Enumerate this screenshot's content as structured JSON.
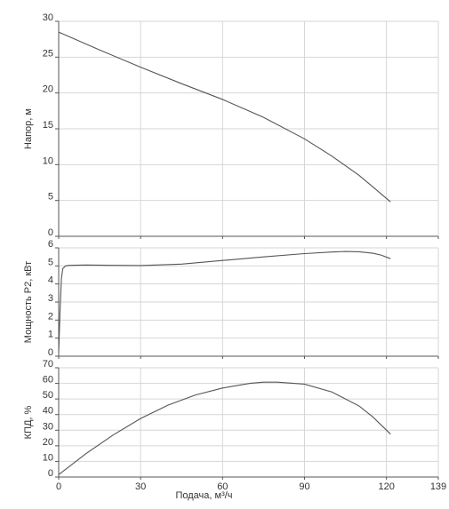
{
  "colors": {
    "curve": "#555555",
    "grid": "#d6d6d6",
    "axis": "#555555"
  },
  "chart_data": [
    {
      "type": "line",
      "ylabel": "Напор, м",
      "xlim": [
        0,
        139
      ],
      "ylim": [
        0,
        30
      ],
      "yticks": [
        0,
        5,
        10,
        15,
        20,
        25,
        30
      ],
      "grid": true,
      "series": [
        {
          "x": [
            0,
            15,
            30,
            45,
            60,
            75,
            90,
            100,
            110,
            115,
            121.5
          ],
          "y": [
            28.5,
            26.0,
            23.6,
            21.3,
            19.1,
            16.6,
            13.6,
            11.2,
            8.5,
            6.9,
            4.8
          ]
        }
      ]
    },
    {
      "type": "line",
      "ylabel": "Мощность P2, кВт",
      "xlim": [
        0,
        139
      ],
      "ylim": [
        0,
        6
      ],
      "yticks": [
        0,
        1,
        2,
        3,
        4,
        5,
        6
      ],
      "grid": true,
      "series": [
        {
          "x": [
            0,
            0.5,
            1.0,
            1.5,
            2.5,
            4,
            6,
            10,
            20,
            30,
            45,
            60,
            75,
            90,
            100,
            105,
            110,
            115,
            118,
            121.5
          ],
          "y": [
            0.2,
            2.5,
            4.3,
            4.85,
            5.0,
            5.03,
            5.04,
            5.05,
            5.03,
            5.02,
            5.1,
            5.3,
            5.5,
            5.68,
            5.77,
            5.8,
            5.78,
            5.7,
            5.6,
            5.4
          ]
        }
      ]
    },
    {
      "type": "line",
      "ylabel": "КПД, %",
      "xlabel": "Подача, м³/ч",
      "xlim": [
        0,
        139
      ],
      "ylim": [
        0,
        70
      ],
      "xticks": [
        0,
        30,
        60,
        90,
        120,
        139
      ],
      "yticks": [
        0,
        10,
        20,
        30,
        40,
        50,
        60,
        70
      ],
      "grid": true,
      "series": [
        {
          "x": [
            0,
            10,
            20,
            30,
            40,
            50,
            60,
            70,
            75,
            80,
            90,
            100,
            110,
            115,
            121.5
          ],
          "y": [
            1.5,
            15,
            27,
            37.5,
            46,
            52.5,
            57,
            60,
            60.8,
            60.8,
            59.5,
            54.5,
            45.5,
            38.5,
            27.5
          ]
        }
      ]
    }
  ]
}
